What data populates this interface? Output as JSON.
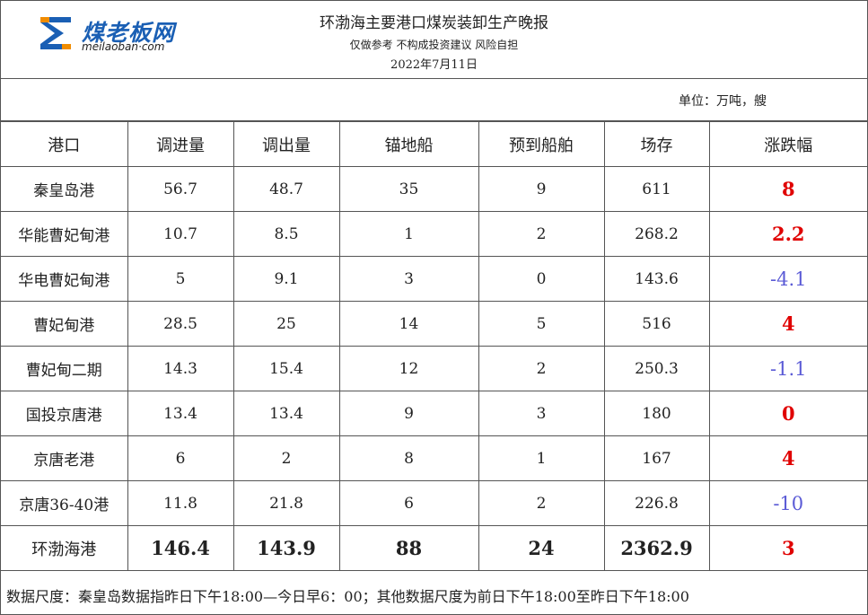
{
  "header": {
    "logo_text": "煤老板网",
    "logo_url": "meilaoban·com",
    "title": "环渤海主要港口煤炭装卸生产晚报",
    "disclaimer": "仅做参考 不构成投资建议 风险自担",
    "date": "2022年7月11日"
  },
  "unit": "单位：万吨，艘",
  "columns": [
    "港口",
    "调进量",
    "调出量",
    "锚地船",
    "预到船舶",
    "场存",
    "涨跌幅"
  ],
  "rows": [
    {
      "port": "秦皇岛港",
      "in": "56.7",
      "out": "48.7",
      "anchor": "35",
      "expected": "9",
      "stock": "611",
      "change": "8",
      "dir": "up"
    },
    {
      "port": "华能曹妃甸港",
      "in": "10.7",
      "out": "8.5",
      "anchor": "1",
      "expected": "2",
      "stock": "268.2",
      "change": "2.2",
      "dir": "up"
    },
    {
      "port": "华电曹妃甸港",
      "in": "5",
      "out": "9.1",
      "anchor": "3",
      "expected": "0",
      "stock": "143.6",
      "change": "-4.1",
      "dir": "down"
    },
    {
      "port": "曹妃甸港",
      "in": "28.5",
      "out": "25",
      "anchor": "14",
      "expected": "5",
      "stock": "516",
      "change": "4",
      "dir": "up"
    },
    {
      "port": "曹妃甸二期",
      "in": "14.3",
      "out": "15.4",
      "anchor": "12",
      "expected": "2",
      "stock": "250.3",
      "change": "-1.1",
      "dir": "down"
    },
    {
      "port": "国投京唐港",
      "in": "13.4",
      "out": "13.4",
      "anchor": "9",
      "expected": "3",
      "stock": "180",
      "change": "0",
      "dir": "up"
    },
    {
      "port": "京唐老港",
      "in": "6",
      "out": "2",
      "anchor": "8",
      "expected": "1",
      "stock": "167",
      "change": "4",
      "dir": "up"
    },
    {
      "port": "京唐36-40港",
      "in": "11.8",
      "out": "21.8",
      "anchor": "6",
      "expected": "2",
      "stock": "226.8",
      "change": "-10",
      "dir": "down"
    }
  ],
  "total": {
    "port": "环渤海港",
    "in": "146.4",
    "out": "143.9",
    "anchor": "88",
    "expected": "24",
    "stock": "2362.9",
    "change": "3",
    "dir": "up"
  },
  "footer": "数据尺度：秦皇岛数据指昨日下午18:00—今日早6：00；其他数据尺度为前日下午18:00至昨日下午18:00",
  "colors": {
    "up": "#e00000",
    "down": "#5b5bd6",
    "logo_blue": "#1a5fb4",
    "logo_orange": "#f08c00"
  }
}
